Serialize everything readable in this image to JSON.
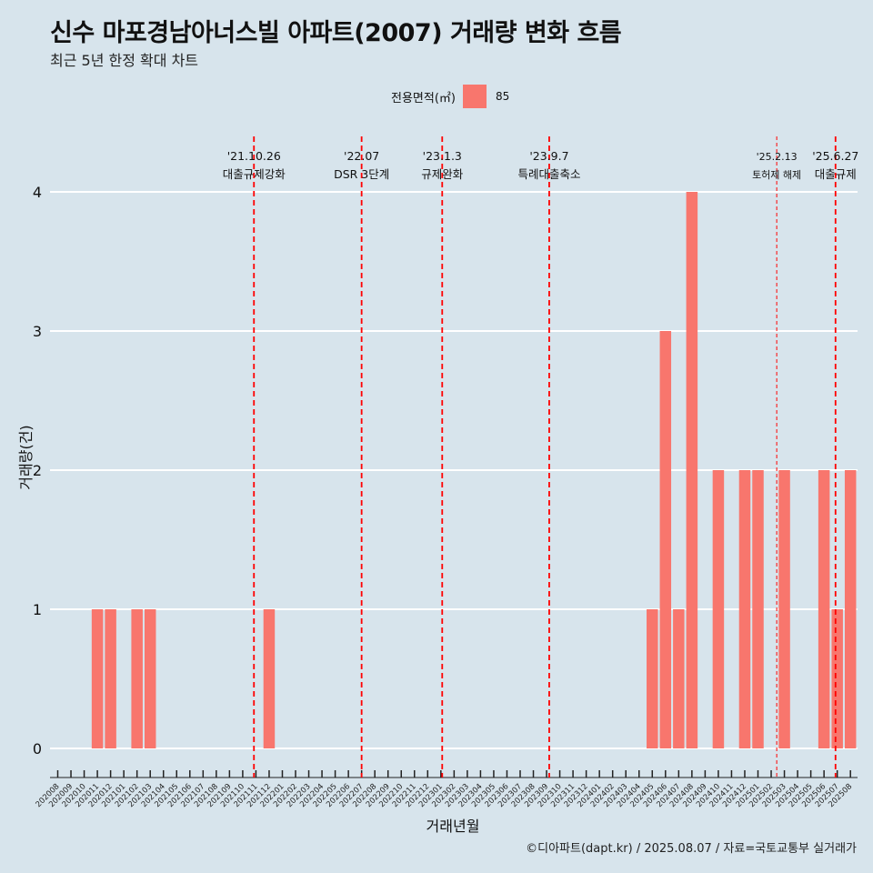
{
  "header": {
    "title": "신수 마포경남아너스빌 아파트(2007) 거래량 변화 흐름",
    "subtitle": "최근 5년 한정 확대 차트"
  },
  "legend": {
    "title": "전용면적(㎡)",
    "label": "85"
  },
  "caption": "©디아파트(dapt.kr) / 2025.08.07 / 자료=국토교통부 실거래가",
  "colors": {
    "background": "#d7e4ec",
    "bar": "#f8766d",
    "grid": "#ffffff",
    "event_line": "#ff0000"
  },
  "chart_data": {
    "type": "bar",
    "xlabel": "거래년월",
    "ylabel": "거래량(건)",
    "ylim": [
      0,
      4
    ],
    "yticks": [
      0,
      1,
      2,
      3,
      4
    ],
    "grid": "horizontal major lines",
    "legend_position": "top",
    "categories": [
      "202008",
      "202009",
      "202010",
      "202011",
      "202012",
      "202101",
      "202102",
      "202103",
      "202104",
      "202105",
      "202106",
      "202107",
      "202108",
      "202109",
      "202110",
      "202111",
      "202112",
      "202201",
      "202202",
      "202203",
      "202204",
      "202205",
      "202206",
      "202207",
      "202208",
      "202209",
      "202210",
      "202211",
      "202212",
      "202301",
      "202302",
      "202303",
      "202304",
      "202305",
      "202306",
      "202307",
      "202308",
      "202309",
      "202310",
      "202311",
      "202312",
      "202401",
      "202402",
      "202403",
      "202404",
      "202405",
      "202406",
      "202407",
      "202408",
      "202409",
      "202410",
      "202411",
      "202412",
      "202501",
      "202502",
      "202503",
      "202504",
      "202505",
      "202506",
      "202507",
      "202508"
    ],
    "series": [
      {
        "name": "85",
        "values": [
          null,
          null,
          null,
          1,
          1,
          0,
          1,
          1,
          null,
          null,
          null,
          null,
          null,
          null,
          null,
          null,
          1,
          null,
          null,
          null,
          null,
          null,
          null,
          null,
          null,
          null,
          null,
          null,
          null,
          null,
          null,
          null,
          null,
          null,
          null,
          null,
          null,
          null,
          null,
          null,
          null,
          null,
          null,
          null,
          null,
          1,
          3,
          1,
          4,
          null,
          2,
          null,
          2,
          2,
          null,
          2,
          null,
          null,
          2,
          1,
          2
        ]
      }
    ],
    "events": [
      {
        "date_label": "'21.10.26",
        "text": "대출규제강화",
        "month": "202110",
        "frac": 0.85,
        "style": "thick"
      },
      {
        "date_label": "'22.07",
        "text": "DSR 3단계",
        "month": "202207",
        "frac": 0.0,
        "style": "thick"
      },
      {
        "date_label": "'23.1.3",
        "text": "규제완화",
        "month": "202301",
        "frac": 0.1,
        "style": "thick"
      },
      {
        "date_label": "'23.9.7",
        "text": "특례대출축소",
        "month": "202309",
        "frac": 0.2,
        "style": "thick"
      },
      {
        "date_label": "'25.2.13",
        "text": "토허제 해제",
        "month": "202502",
        "frac": 0.42,
        "style": "thin"
      },
      {
        "date_label": "'25.6.27",
        "text": "대출규제",
        "month": "202506",
        "frac": 0.87,
        "style": "thick"
      }
    ]
  }
}
